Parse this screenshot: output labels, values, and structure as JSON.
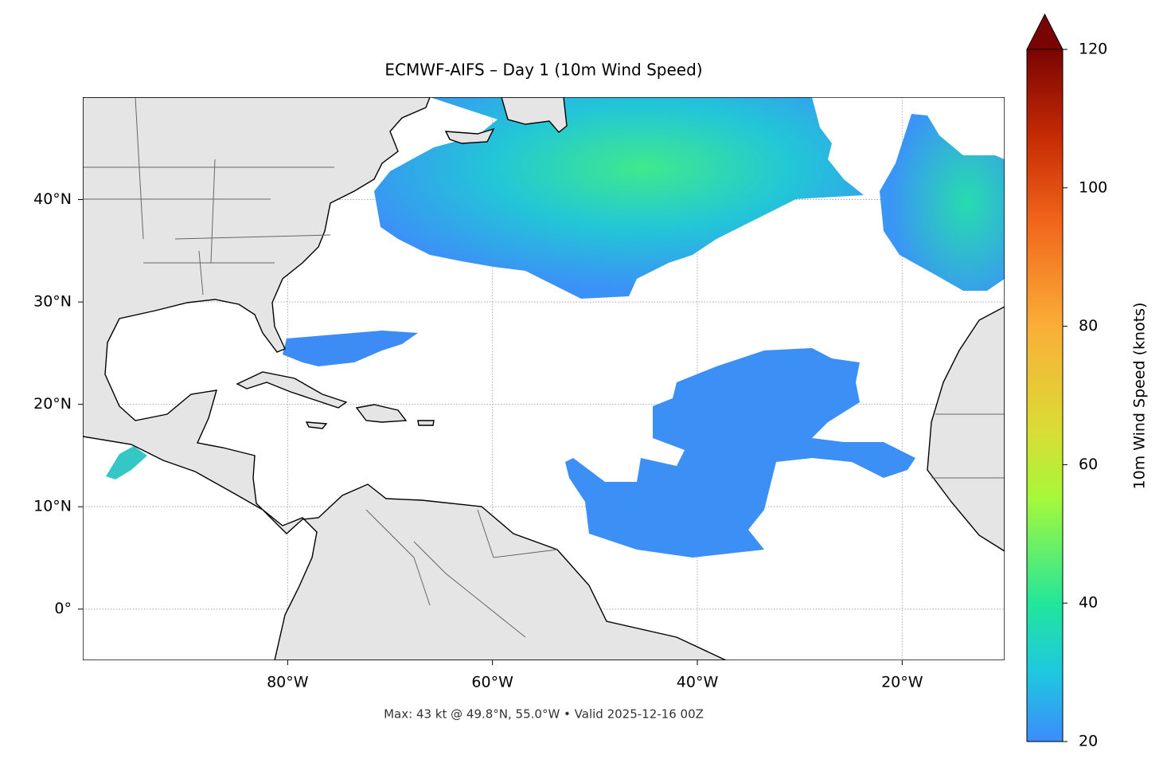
{
  "chart_data": {
    "type": "map",
    "title": "ECMWF-AIFS – Day 1 (10m Wind Speed)",
    "footer": "Max: 43 kt @ 49.8°N, 55.0°W • Valid 2025-12-16 00Z",
    "xlim": [
      -100,
      -10
    ],
    "ylim": [
      -5,
      50
    ],
    "xticks": [
      {
        "value": -80,
        "label": "80°W"
      },
      {
        "value": -60,
        "label": "60°W"
      },
      {
        "value": -40,
        "label": "40°W"
      },
      {
        "value": -20,
        "label": "20°W"
      }
    ],
    "yticks": [
      {
        "value": 0,
        "label": "0°"
      },
      {
        "value": 10,
        "label": "10°N"
      },
      {
        "value": 20,
        "label": "20°N"
      },
      {
        "value": 30,
        "label": "30°N"
      },
      {
        "value": 40,
        "label": "40°N"
      }
    ],
    "grid": true,
    "colorbar": {
      "label": "10m Wind Speed (knots)",
      "lim": [
        20,
        120
      ],
      "ticks": [
        20,
        40,
        60,
        80,
        100,
        120
      ]
    }
  }
}
